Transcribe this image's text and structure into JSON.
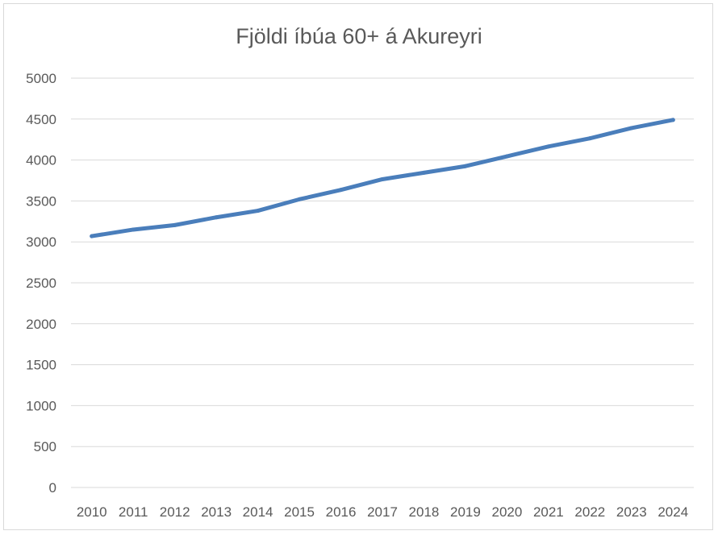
{
  "chart_data": {
    "type": "line",
    "title": "Fjöldi íbúa 60+ á Akureyri",
    "xlabel": "",
    "ylabel": "",
    "categories": [
      "2010",
      "2011",
      "2012",
      "2013",
      "2014",
      "2015",
      "2016",
      "2017",
      "2018",
      "2019",
      "2020",
      "2021",
      "2022",
      "2023",
      "2024"
    ],
    "series": [
      {
        "values": [
          3070,
          3150,
          3205,
          3300,
          3380,
          3520,
          3635,
          3765,
          3845,
          3925,
          4045,
          4165,
          4265,
          4390,
          4490
        ],
        "color": "#4a7ebb"
      }
    ],
    "ylim": [
      0,
      5000
    ],
    "yticks": [
      0,
      500,
      1000,
      1500,
      2000,
      2500,
      3000,
      3500,
      4000,
      4500,
      5000
    ],
    "grid": true,
    "legend": "none",
    "gridColor": "#d9d9d9"
  }
}
